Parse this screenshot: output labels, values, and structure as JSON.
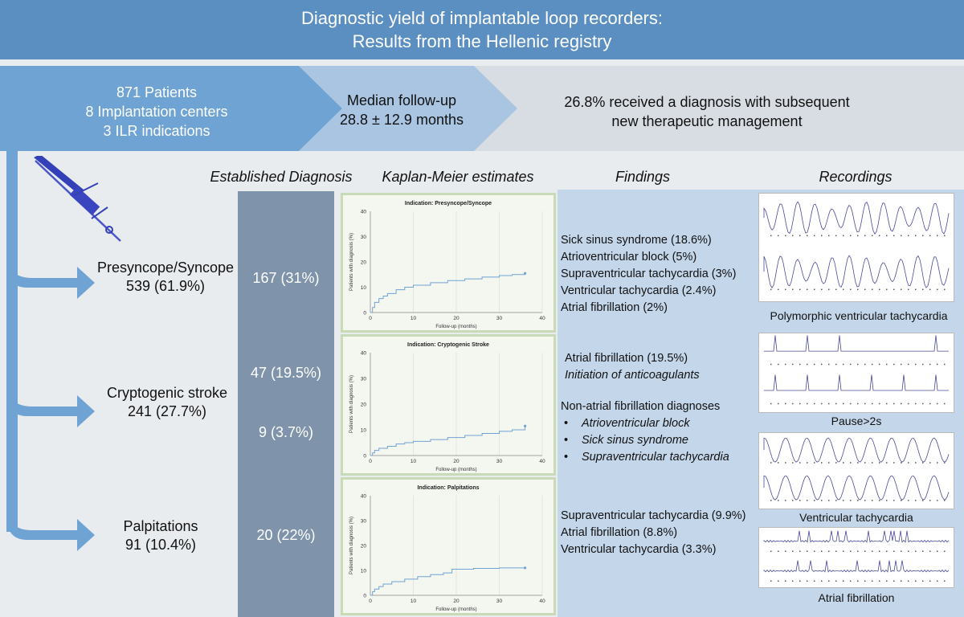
{
  "title": {
    "line1": "Diagnostic yield of implantable loop recorders:",
    "line2": "Results from the Hellenic registry"
  },
  "summary": {
    "patients": "871 Patients",
    "centers": "8 Implantation centers",
    "indications": "3 ILR indications",
    "followup_label": "Median follow-up",
    "followup_value": "28.8 ± 12.9 months",
    "diagnosis_line1": "26.8% received a diagnosis with subsequent",
    "diagnosis_line2": "new therapeutic management"
  },
  "column_headers": {
    "diagnosis": "Established Diagnosis",
    "km": "Kaplan-Meier estimates",
    "findings": "Findings",
    "recordings": "Recordings"
  },
  "indications": [
    {
      "name": "Presyncope/Syncope",
      "count": "539 (61.9%)"
    },
    {
      "name": "Cryptogenic stroke",
      "count": "241 (27.7%)"
    },
    {
      "name": "Palpitations",
      "count": "91 (10.4%)"
    }
  ],
  "diagnoses": {
    "syncope": "167 (31%)",
    "stroke_af": "47 (19.5%)",
    "stroke_non_af": "9 (3.7%)",
    "palpitations": "20 (22%)"
  },
  "findings": {
    "syncope": [
      "Sick sinus syndrome (18.6%)",
      "Atrioventricular block (5%)",
      "Supraventricular tachycardia (3%)",
      "Ventricular tachycardia (2.4%)",
      "Atrial fibrillation (2%)"
    ],
    "stroke_af": "Atrial fibrillation (19.5%)",
    "stroke_af_note": "Initiation of anticoagulants",
    "stroke_non_af_title": "Non-atrial fibrillation diagnoses",
    "stroke_non_af_items": [
      "Atrioventricular block",
      "Sick sinus syndrome",
      "Supraventricular tachycardia"
    ],
    "palpitations": [
      "Supraventricular tachycardia (9.9%)",
      "Atrial fibrillation (8.8%)",
      "Ventricular tachycardia (3.3%)"
    ]
  },
  "recordings": {
    "r1": "Polymorphic ventricular tachycardia",
    "r2": "Pause>2s",
    "r3": "Ventricular tachycardia",
    "r4": "Atrial fibrillation"
  },
  "chart_data": [
    {
      "type": "line",
      "title": "Indication:   Presyncope/Syncope",
      "xlabel": "Follow-up (months)",
      "ylabel": "Patients with diagnosis (%)",
      "xlim": [
        0,
        40
      ],
      "ylim": [
        0,
        40
      ],
      "xticks": [
        "0",
        "10",
        "20",
        "30",
        "40"
      ],
      "yticks": [
        "0",
        "10",
        "20",
        "30",
        "40"
      ],
      "x": [
        0,
        0.5,
        1,
        2,
        3,
        4,
        6,
        8,
        10,
        14,
        18,
        22,
        26,
        30,
        33,
        36
      ],
      "y": [
        0,
        2,
        4,
        5.5,
        6.5,
        7.5,
        9,
        10,
        10.8,
        11.8,
        12.6,
        13.3,
        14,
        14.6,
        15,
        15.5
      ]
    },
    {
      "type": "line",
      "title": "Indication:   Cryptogenic Stroke",
      "xlabel": "Follow-up (months)",
      "ylabel": "Patients with diagnosis (%)",
      "xlim": [
        0,
        40
      ],
      "ylim": [
        0,
        40
      ],
      "xticks": [
        "0",
        "10",
        "20",
        "30",
        "40"
      ],
      "yticks": [
        "0",
        "10",
        "20",
        "30",
        "40"
      ],
      "x": [
        0,
        0.5,
        1,
        2,
        4,
        6,
        8,
        10,
        14,
        18,
        22,
        26,
        30,
        33,
        36
      ],
      "y": [
        0,
        1,
        2,
        2.8,
        3.6,
        4.5,
        5,
        5.5,
        6.2,
        7,
        7.8,
        8.6,
        9.4,
        10,
        11.5
      ]
    },
    {
      "type": "line",
      "title": "Indication:   Palpitations",
      "xlabel": "Follow-up (months)",
      "ylabel": "Patients with diagnosis (%)",
      "xlim": [
        0,
        40
      ],
      "ylim": [
        0,
        40
      ],
      "xticks": [
        "0",
        "10",
        "20",
        "30",
        "40"
      ],
      "yticks": [
        "0",
        "10",
        "20",
        "30",
        "40"
      ],
      "x": [
        0,
        0.5,
        1,
        2,
        3,
        5,
        8,
        11,
        14,
        17,
        19,
        24,
        30,
        36
      ],
      "y": [
        0,
        1.5,
        2.5,
        3.5,
        4.5,
        5.5,
        6.5,
        7.5,
        8.3,
        9,
        10.5,
        10.8,
        11,
        11
      ]
    }
  ],
  "colors": {
    "title_bg": "#5b8fc2",
    "arrow": "#6fa3d3",
    "slate": "#7f93aa",
    "findings_bg": "#c4d6ea",
    "km_line": "#6fa3d3"
  }
}
